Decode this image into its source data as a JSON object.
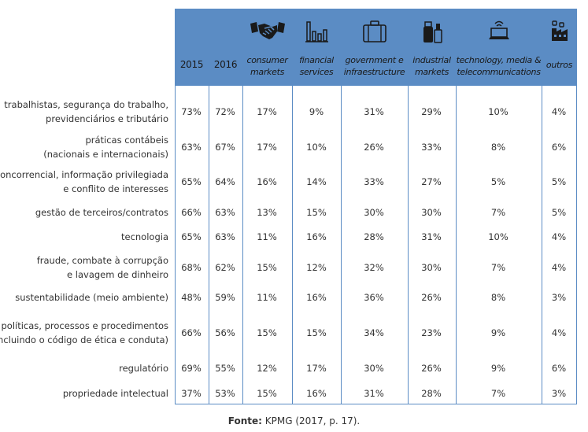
{
  "header": {
    "col_2015": "2015",
    "col_2016": "2016",
    "sectors": [
      {
        "line1": "consumer",
        "line2": "markets",
        "icon": "handshake-icon"
      },
      {
        "line1": "financial",
        "line2": "services",
        "icon": "bar-chart-icon"
      },
      {
        "line1": "government e",
        "line2": "infraestructure",
        "icon": "briefcase-icon"
      },
      {
        "line1": "industrial",
        "line2": "markets",
        "icon": "industrial-products-icon"
      },
      {
        "line1": "technology, media &",
        "line2": "telecommunications",
        "icon": "laptop-wifi-icon"
      },
      {
        "line1": "outros",
        "line2": "",
        "icon": "factory-icon"
      }
    ]
  },
  "rows": [
    {
      "label1": "trabalhistas, segurança do trabalho,",
      "label2": "previdenciários e tributário",
      "values": [
        "73%",
        "72%",
        "17%",
        "9%",
        "31%",
        "29%",
        "10%",
        "4%"
      ]
    },
    {
      "label1": "práticas contábeis",
      "label2": "(nacionais e internacionais)",
      "values": [
        "63%",
        "67%",
        "17%",
        "10%",
        "26%",
        "33%",
        "8%",
        "6%"
      ]
    },
    {
      "label1": "concorrencial, informação privilegiada",
      "label2": "e conflito de interesses",
      "values": [
        "65%",
        "64%",
        "16%",
        "14%",
        "33%",
        "27%",
        "5%",
        "5%"
      ]
    },
    {
      "label1": "gestão de terceiros/contratos",
      "label2": "",
      "values": [
        "66%",
        "63%",
        "13%",
        "15%",
        "30%",
        "30%",
        "7%",
        "5%"
      ]
    },
    {
      "label1": "tecnologia",
      "label2": "",
      "values": [
        "65%",
        "63%",
        "11%",
        "16%",
        "28%",
        "31%",
        "10%",
        "4%"
      ]
    },
    {
      "label1": "fraude, combate à corrupção",
      "label2": "e lavagem de dinheiro",
      "values": [
        "68%",
        "62%",
        "15%",
        "12%",
        "32%",
        "30%",
        "7%",
        "4%"
      ]
    },
    {
      "label1": "sustentabilidade (meio ambiente)",
      "label2": "",
      "values": [
        "48%",
        "59%",
        "11%",
        "16%",
        "36%",
        "26%",
        "8%",
        "3%"
      ]
    },
    {
      "label1": "políticas, processos e procedimentos",
      "label2": "(incluindo o código de ética e conduta)",
      "values": [
        "66%",
        "56%",
        "15%",
        "15%",
        "34%",
        "23%",
        "9%",
        "4%"
      ]
    },
    {
      "label1": "regulatório",
      "label2": "",
      "values": [
        "69%",
        "55%",
        "12%",
        "17%",
        "30%",
        "26%",
        "9%",
        "6%"
      ]
    },
    {
      "label1": "propriedade intelectual",
      "label2": "",
      "values": [
        "37%",
        "53%",
        "15%",
        "16%",
        "31%",
        "28%",
        "7%",
        "3%"
      ]
    }
  ],
  "source": {
    "prefix": "Fonte:",
    "text": "KPMG (2017, p. 17)."
  }
}
